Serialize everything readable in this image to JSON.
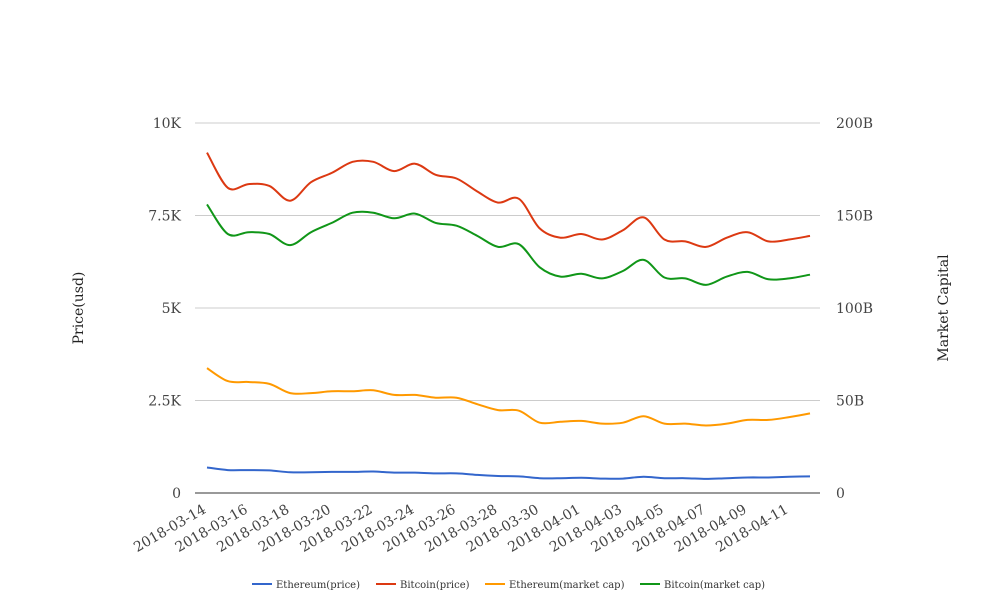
{
  "chart_data": {
    "type": "line",
    "x": [
      "2018-03-14",
      "2018-03-15",
      "2018-03-16",
      "2018-03-17",
      "2018-03-18",
      "2018-03-19",
      "2018-03-20",
      "2018-03-21",
      "2018-03-22",
      "2018-03-23",
      "2018-03-24",
      "2018-03-25",
      "2018-03-26",
      "2018-03-27",
      "2018-03-28",
      "2018-03-29",
      "2018-03-30",
      "2018-03-31",
      "2018-04-01",
      "2018-04-02",
      "2018-04-03",
      "2018-04-04",
      "2018-04-05",
      "2018-04-06",
      "2018-04-07",
      "2018-04-08",
      "2018-04-09",
      "2018-04-10",
      "2018-04-11",
      "2018-04-12"
    ],
    "x_tick_labels": [
      "2018-03-14",
      "2018-03-16",
      "2018-03-18",
      "2018-03-20",
      "2018-03-22",
      "2018-03-24",
      "2018-03-26",
      "2018-03-28",
      "2018-03-30",
      "2018-04-01",
      "2018-04-03",
      "2018-04-05",
      "2018-04-07",
      "2018-04-09",
      "2018-04-11"
    ],
    "y_left": {
      "label": "Price(usd)",
      "ylim": [
        0,
        10000
      ],
      "ticks": [
        "0",
        "2.5K",
        "5K",
        "7.5K",
        "10K"
      ]
    },
    "y_right": {
      "label": "Market Capital",
      "ylim": [
        0,
        200000000000
      ],
      "ticks": [
        "0",
        "50B",
        "100B",
        "150B",
        "200B"
      ]
    },
    "grid": true,
    "legend_position": "bottom",
    "series": [
      {
        "name": "Ethereum(price)",
        "axis": "left",
        "color": "#3366cc",
        "values": [
          690,
          620,
          620,
          610,
          560,
          560,
          570,
          570,
          580,
          550,
          550,
          530,
          530,
          490,
          460,
          450,
          400,
          400,
          410,
          390,
          390,
          440,
          400,
          400,
          380,
          400,
          420,
          420,
          440,
          450
        ]
      },
      {
        "name": "Bitcoin(price)",
        "axis": "left",
        "color": "#dc3912",
        "values": [
          9200,
          8250,
          8350,
          8300,
          7900,
          8400,
          8650,
          8950,
          8950,
          8700,
          8900,
          8600,
          8500,
          8150,
          7850,
          7950,
          7150,
          6900,
          7000,
          6850,
          7100,
          7450,
          6850,
          6800,
          6650,
          6900,
          7050,
          6800,
          6850,
          6950
        ]
      },
      {
        "name": "Ethereum(market cap)",
        "axis": "right",
        "color": "#ff9900",
        "values": [
          67500000000,
          60500000000,
          60000000000,
          59000000000,
          54000000000,
          54000000000,
          55000000000,
          55000000000,
          55500000000,
          53000000000,
          53000000000,
          51500000000,
          51500000000,
          48000000000,
          44800000000,
          44500000000,
          38000000000,
          38500000000,
          39000000000,
          37500000000,
          38000000000,
          41500000000,
          37500000000,
          37500000000,
          36500000000,
          37500000000,
          39500000000,
          39500000000,
          41000000000,
          43000000000
        ]
      },
      {
        "name": "Bitcoin(market cap)",
        "axis": "right",
        "color": "#109618",
        "values": [
          156000000000,
          140000000000,
          141000000000,
          140000000000,
          134000000000,
          141000000000,
          146000000000,
          151500000000,
          151500000000,
          148500000000,
          151000000000,
          146000000000,
          144500000000,
          139000000000,
          133000000000,
          134500000000,
          122000000000,
          117000000000,
          118500000000,
          116000000000,
          120000000000,
          126000000000,
          116500000000,
          116000000000,
          112500000000,
          117000000000,
          119500000000,
          115500000000,
          116000000000,
          118000000000
        ]
      }
    ]
  }
}
